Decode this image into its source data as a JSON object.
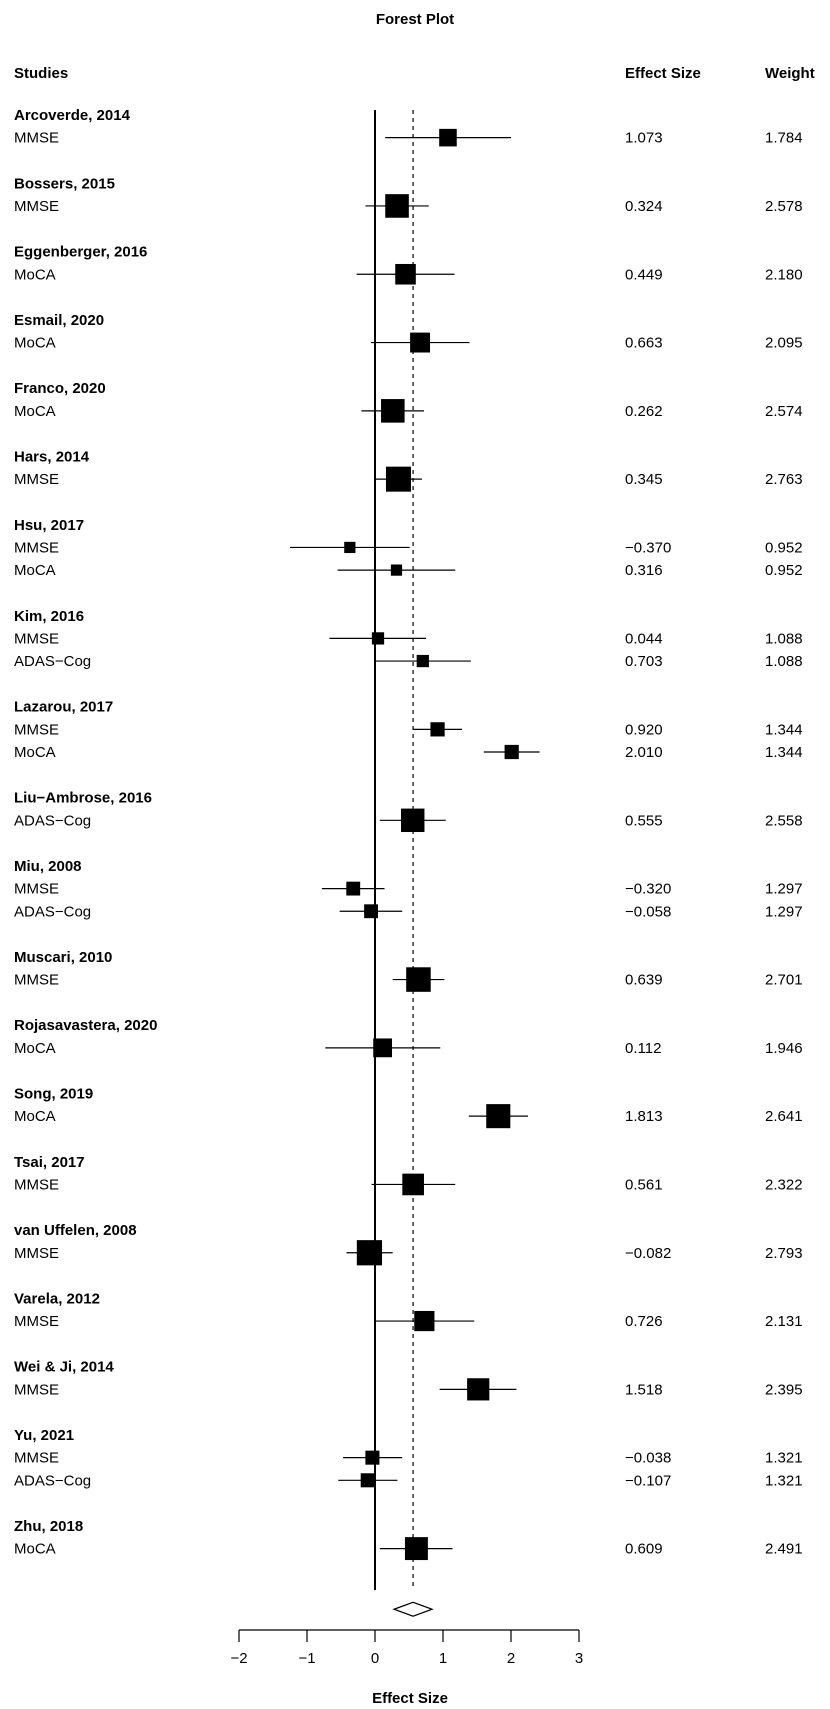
{
  "chart_data": {
    "type": "forest",
    "title": "Forest Plot",
    "header_studies": "Studies",
    "header_effect": "Effect Size",
    "header_weight": "Weight",
    "xlabel": "Effect Size",
    "xlim": [
      -2,
      3
    ],
    "xticks": [
      "−2",
      "−1",
      "0",
      "1",
      "2",
      "3"
    ],
    "xtick_values": [
      -2,
      -1,
      0,
      1,
      2,
      3
    ],
    "reference_line": 0,
    "pooled_effect": 0.56,
    "pooled_ci": [
      0.28,
      0.84
    ],
    "studies": [
      {
        "name": "Arcoverde, 2014",
        "outcomes": [
          {
            "measure": "MMSE",
            "es": 1.073,
            "es_label": "1.073",
            "weight": "1.784",
            "ci": [
              0.15,
              2.0
            ]
          }
        ]
      },
      {
        "name": "Bossers, 2015",
        "outcomes": [
          {
            "measure": "MMSE",
            "es": 0.324,
            "es_label": "0.324",
            "weight": "2.578",
            "ci": [
              -0.14,
              0.79
            ]
          }
        ]
      },
      {
        "name": "Eggenberger, 2016",
        "outcomes": [
          {
            "measure": "MoCA",
            "es": 0.449,
            "es_label": "0.449",
            "weight": "2.180",
            "ci": [
              -0.27,
              1.17
            ]
          }
        ]
      },
      {
        "name": "Esmail, 2020",
        "outcomes": [
          {
            "measure": "MoCA",
            "es": 0.663,
            "es_label": "0.663",
            "weight": "2.095",
            "ci": [
              -0.06,
              1.39
            ]
          }
        ]
      },
      {
        "name": "Franco, 2020",
        "outcomes": [
          {
            "measure": "MoCA",
            "es": 0.262,
            "es_label": "0.262",
            "weight": "2.574",
            "ci": [
              -0.2,
              0.72
            ]
          }
        ]
      },
      {
        "name": "Hars, 2014",
        "outcomes": [
          {
            "measure": "MMSE",
            "es": 0.345,
            "es_label": "0.345",
            "weight": "2.763",
            "ci": [
              0.0,
              0.69
            ]
          }
        ]
      },
      {
        "name": "Hsu, 2017",
        "outcomes": [
          {
            "measure": "MMSE",
            "es": -0.37,
            "es_label": "−0.370",
            "weight": "0.952",
            "ci": [
              -1.25,
              0.51
            ]
          },
          {
            "measure": "MoCA",
            "es": 0.316,
            "es_label": "0.316",
            "weight": "0.952",
            "ci": [
              -0.55,
              1.18
            ]
          }
        ]
      },
      {
        "name": "Kim, 2016",
        "outcomes": [
          {
            "measure": "MMSE",
            "es": 0.044,
            "es_label": "0.044",
            "weight": "1.088",
            "ci": [
              -0.67,
              0.75
            ]
          },
          {
            "measure": "ADAS−Cog",
            "es": 0.703,
            "es_label": "0.703",
            "weight": "1.088",
            "ci": [
              0.0,
              1.41
            ]
          }
        ]
      },
      {
        "name": "Lazarou, 2017",
        "outcomes": [
          {
            "measure": "MMSE",
            "es": 0.92,
            "es_label": "0.920",
            "weight": "1.344",
            "ci": [
              0.56,
              1.28
            ]
          },
          {
            "measure": "MoCA",
            "es": 2.01,
            "es_label": "2.010",
            "weight": "1.344",
            "ci": [
              1.6,
              2.42
            ]
          }
        ]
      },
      {
        "name": "Liu−Ambrose, 2016",
        "outcomes": [
          {
            "measure": "ADAS−Cog",
            "es": 0.555,
            "es_label": "0.555",
            "weight": "2.558",
            "ci": [
              0.07,
              1.04
            ]
          }
        ]
      },
      {
        "name": "Miu, 2008",
        "outcomes": [
          {
            "measure": "MMSE",
            "es": -0.32,
            "es_label": "−0.320",
            "weight": "1.297",
            "ci": [
              -0.78,
              0.14
            ]
          },
          {
            "measure": "ADAS−Cog",
            "es": -0.058,
            "es_label": "−0.058",
            "weight": "1.297",
            "ci": [
              -0.52,
              0.4
            ]
          }
        ]
      },
      {
        "name": "Muscari, 2010",
        "outcomes": [
          {
            "measure": "MMSE",
            "es": 0.639,
            "es_label": "0.639",
            "weight": "2.701",
            "ci": [
              0.26,
              1.02
            ]
          }
        ]
      },
      {
        "name": "Rojasavastera, 2020",
        "outcomes": [
          {
            "measure": "MoCA",
            "es": 0.112,
            "es_label": "0.112",
            "weight": "1.946",
            "ci": [
              -0.73,
              0.96
            ]
          }
        ]
      },
      {
        "name": "Song, 2019",
        "outcomes": [
          {
            "measure": "MoCA",
            "es": 1.813,
            "es_label": "1.813",
            "weight": "2.641",
            "ci": [
              1.38,
              2.25
            ]
          }
        ]
      },
      {
        "name": "Tsai, 2017",
        "outcomes": [
          {
            "measure": "MMSE",
            "es": 0.561,
            "es_label": "0.561",
            "weight": "2.322",
            "ci": [
              -0.05,
              1.18
            ]
          }
        ]
      },
      {
        "name": "van Uffelen, 2008",
        "outcomes": [
          {
            "measure": "MMSE",
            "es": -0.082,
            "es_label": "−0.082",
            "weight": "2.793",
            "ci": [
              -0.42,
              0.26
            ]
          }
        ]
      },
      {
        "name": "Varela, 2012",
        "outcomes": [
          {
            "measure": "MMSE",
            "es": 0.726,
            "es_label": "0.726",
            "weight": "2.131",
            "ci": [
              0.0,
              1.46
            ]
          }
        ]
      },
      {
        "name": "Wei & Ji, 2014",
        "outcomes": [
          {
            "measure": "MMSE",
            "es": 1.518,
            "es_label": "1.518",
            "weight": "2.395",
            "ci": [
              0.95,
              2.08
            ]
          }
        ]
      },
      {
        "name": "Yu, 2021",
        "outcomes": [
          {
            "measure": "MMSE",
            "es": -0.038,
            "es_label": "−0.038",
            "weight": "1.321",
            "ci": [
              -0.47,
              0.4
            ]
          },
          {
            "measure": "ADAS−Cog",
            "es": -0.107,
            "es_label": "−0.107",
            "weight": "1.321",
            "ci": [
              -0.54,
              0.33
            ]
          }
        ]
      },
      {
        "name": "Zhu, 2018",
        "outcomes": [
          {
            "measure": "MoCA",
            "es": 0.609,
            "es_label": "0.609",
            "weight": "2.491",
            "ci": [
              0.07,
              1.14
            ]
          }
        ]
      }
    ]
  }
}
